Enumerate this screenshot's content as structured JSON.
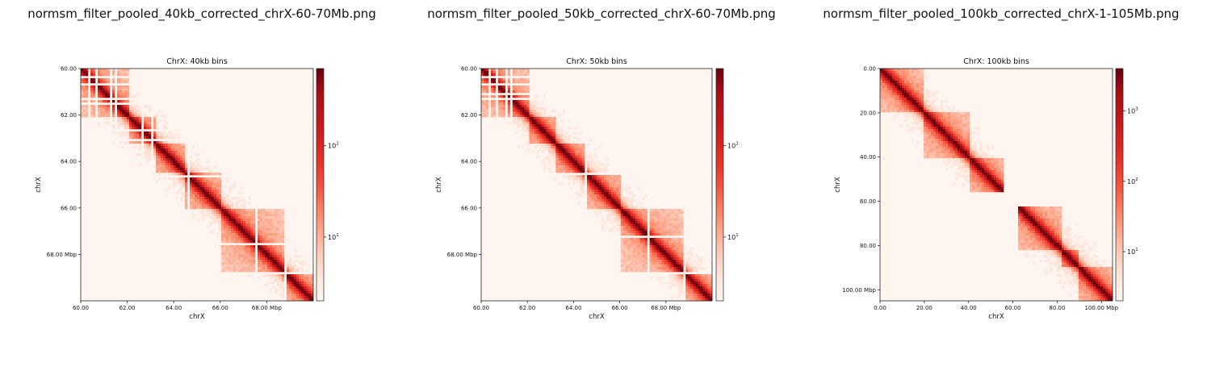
{
  "figure_titles": [
    "normsm_filter_pooled_40kb_corrected_chrX-60-70Mb.png",
    "normsm_filter_pooled_50kb_corrected_chrX-60-70Mb.png",
    "normsm_filter_pooled_100kb_corrected_chrX-1-105Mb.png"
  ],
  "colors": {
    "cmap": "Reds",
    "low": "#fff5f0",
    "mid": "#ef3b2c",
    "high": "#67000d"
  },
  "chart_data": [
    {
      "type": "heatmap",
      "title": "ChrX: 40kb bins",
      "xlabel": "chrX",
      "ylabel": "chrX",
      "range_mbp": [
        60.0,
        70.0
      ],
      "x_ticks": [
        "60.00",
        "62.00",
        "64.00",
        "66.00",
        "68.00  Mbp"
      ],
      "x_tick_values": [
        60,
        62,
        64,
        66,
        68
      ],
      "y_ticks": [
        "60.00",
        "62.00",
        "64.00",
        "66.00",
        "68.00  Mbp"
      ],
      "y_tick_values": [
        60,
        62,
        64,
        66,
        68
      ],
      "colorbar_scale": "log",
      "colorbar_range": [
        2,
        700
      ],
      "colorbar_ticks": [
        {
          "base": "10",
          "exp": "1",
          "value": 10
        },
        {
          "base": "10",
          "exp": "2",
          "value": 100
        }
      ],
      "tad_blocks_mbp": [
        [
          60.0,
          62.1
        ],
        [
          62.1,
          63.2
        ],
        [
          63.2,
          64.5
        ],
        [
          64.5,
          66.0
        ],
        [
          66.0,
          68.8
        ],
        [
          68.8,
          70.0
        ]
      ],
      "gaps_mbp": [
        60.3,
        60.6,
        61.2,
        61.5,
        62.6,
        63.0,
        64.6,
        67.5,
        68.8
      ]
    },
    {
      "type": "heatmap",
      "title": "ChrX: 50kb bins",
      "xlabel": "chrX",
      "ylabel": "chrX",
      "range_mbp": [
        60.0,
        70.0
      ],
      "x_ticks": [
        "60.00",
        "62.00",
        "64.00",
        "66.00",
        "68.00  Mbp"
      ],
      "x_tick_values": [
        60,
        62,
        64,
        66,
        68
      ],
      "y_ticks": [
        "60.00",
        "62.00",
        "64.00",
        "66.00",
        "68.00  Mbp"
      ],
      "y_tick_values": [
        60,
        62,
        64,
        66,
        68
      ],
      "colorbar_scale": "log",
      "colorbar_range": [
        2,
        700
      ],
      "colorbar_ticks": [
        {
          "base": "10",
          "exp": "1",
          "value": 10
        },
        {
          "base": "10",
          "exp": "2",
          "value": 100
        }
      ],
      "tad_blocks_mbp": [
        [
          60.0,
          62.1
        ],
        [
          62.1,
          63.2
        ],
        [
          63.2,
          64.5
        ],
        [
          64.5,
          66.0
        ],
        [
          66.0,
          68.7
        ],
        [
          68.7,
          70.0
        ]
      ],
      "gaps_mbp": [
        60.3,
        60.6,
        61.0,
        61.2,
        64.5,
        67.2,
        68.7
      ]
    },
    {
      "type": "heatmap",
      "title": "ChrX: 100kb bins",
      "xlabel": "chrX",
      "ylabel": "chrX",
      "range_mbp": [
        0.0,
        105.0
      ],
      "x_ticks": [
        "0.00",
        "20.00",
        "40.00",
        "60.00",
        "80.00",
        "100.00  Mbp"
      ],
      "x_tick_values": [
        0,
        20,
        40,
        60,
        80,
        100
      ],
      "y_ticks": [
        "0.00",
        "20.00",
        "40.00",
        "60.00",
        "80.00",
        "100.00  Mbp"
      ],
      "y_tick_values": [
        0,
        20,
        40,
        60,
        80,
        100
      ],
      "colorbar_scale": "log",
      "colorbar_range": [
        2,
        4000
      ],
      "colorbar_ticks": [
        {
          "base": "10",
          "exp": "1",
          "value": 10
        },
        {
          "base": "10",
          "exp": "2",
          "value": 100
        },
        {
          "base": "10",
          "exp": "3",
          "value": 1000
        }
      ],
      "tad_blocks_mbp": [
        [
          0,
          20
        ],
        [
          20,
          40
        ],
        [
          40,
          56
        ],
        [
          61,
          82
        ],
        [
          82,
          90
        ],
        [
          90,
          105
        ]
      ],
      "gaps_mbp": [
        56,
        57,
        58,
        59,
        60,
        61
      ]
    }
  ]
}
